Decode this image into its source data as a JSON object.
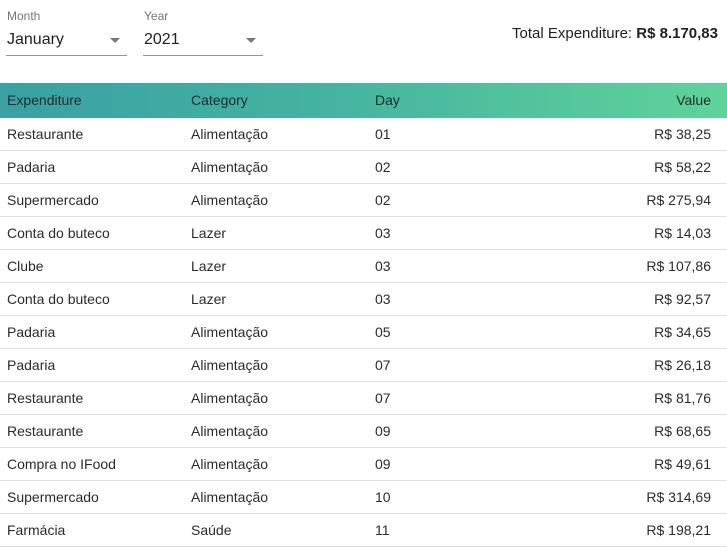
{
  "filters": {
    "month": {
      "label": "Month",
      "value": "January"
    },
    "year": {
      "label": "Year",
      "value": "2021"
    }
  },
  "total": {
    "label": "Total Expenditure:",
    "value": "R$ 8.170,83"
  },
  "table": {
    "headers": {
      "expenditure": "Expenditure",
      "category": "Category",
      "day": "Day",
      "value": "Value"
    },
    "rows": [
      {
        "expenditure": "Restaurante",
        "category": "Alimentação",
        "day": "01",
        "value": "R$ 38,25"
      },
      {
        "expenditure": "Padaria",
        "category": "Alimentação",
        "day": "02",
        "value": "R$ 58,22"
      },
      {
        "expenditure": "Supermercado",
        "category": "Alimentação",
        "day": "02",
        "value": "R$ 275,94"
      },
      {
        "expenditure": "Conta do buteco",
        "category": "Lazer",
        "day": "03",
        "value": "R$ 14,03"
      },
      {
        "expenditure": "Clube",
        "category": "Lazer",
        "day": "03",
        "value": "R$ 107,86"
      },
      {
        "expenditure": "Conta do buteco",
        "category": "Lazer",
        "day": "03",
        "value": "R$ 92,57"
      },
      {
        "expenditure": "Padaria",
        "category": "Alimentação",
        "day": "05",
        "value": "R$ 34,65"
      },
      {
        "expenditure": "Padaria",
        "category": "Alimentação",
        "day": "07",
        "value": "R$ 26,18"
      },
      {
        "expenditure": "Restaurante",
        "category": "Alimentação",
        "day": "07",
        "value": "R$ 81,76"
      },
      {
        "expenditure": "Restaurante",
        "category": "Alimentação",
        "day": "09",
        "value": "R$ 68,65"
      },
      {
        "expenditure": "Compra no IFood",
        "category": "Alimentação",
        "day": "09",
        "value": "R$ 49,61"
      },
      {
        "expenditure": "Supermercado",
        "category": "Alimentação",
        "day": "10",
        "value": "R$ 314,69"
      },
      {
        "expenditure": "Farmácia",
        "category": "Saúde",
        "day": "11",
        "value": "R$ 198,21"
      }
    ]
  },
  "colors": {
    "header_gradient_start": "#3aa0a3",
    "header_gradient_end": "#5fd39a"
  }
}
